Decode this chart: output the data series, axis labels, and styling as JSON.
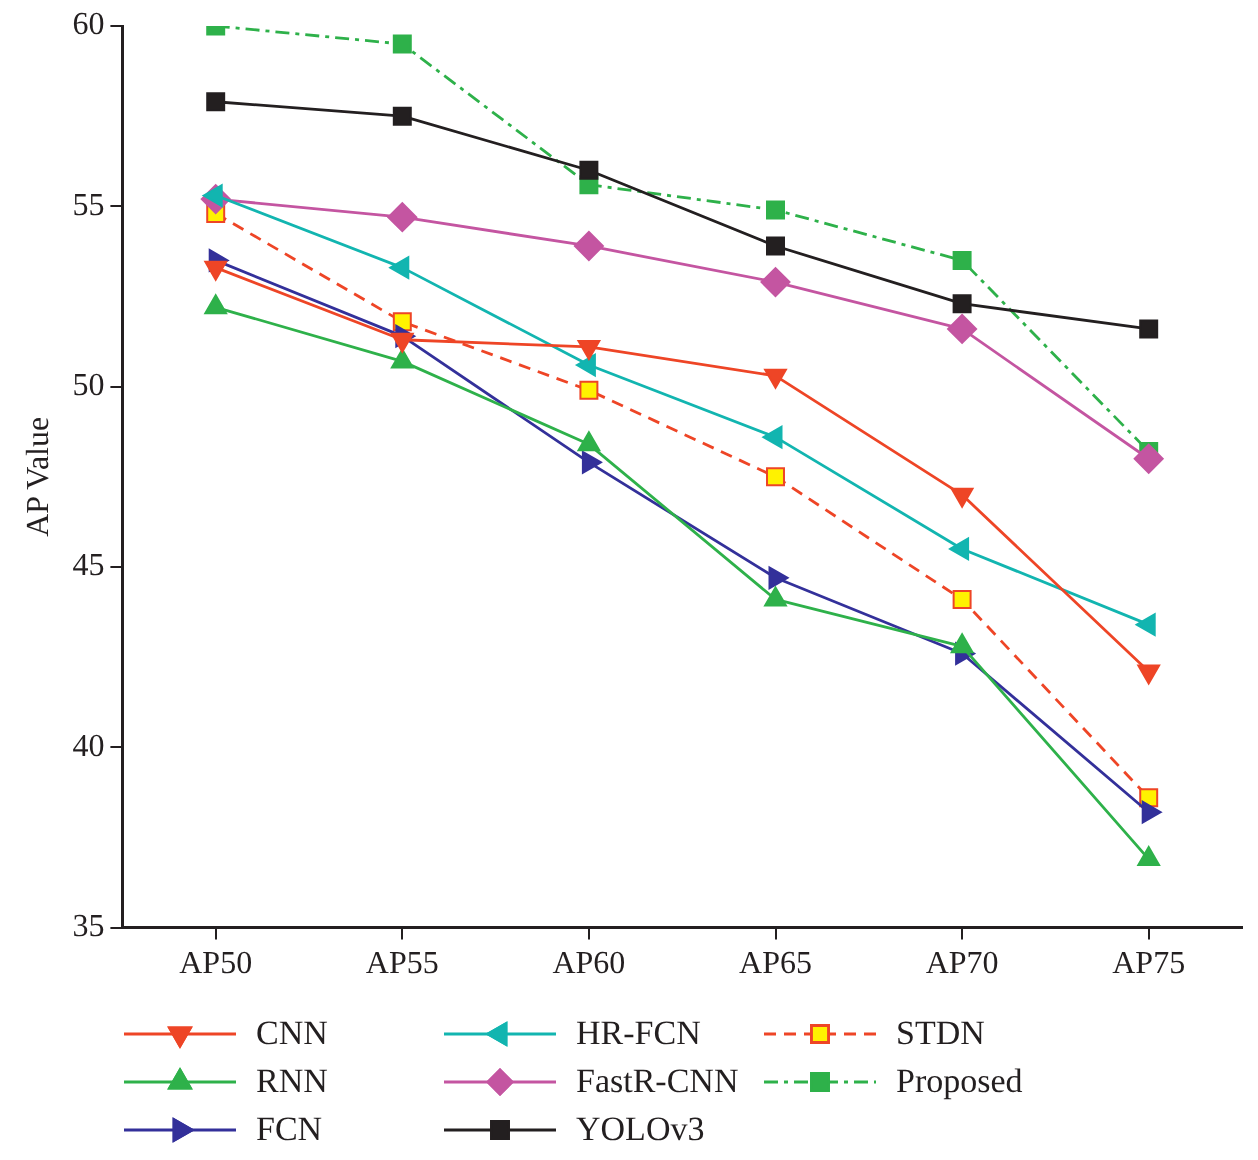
{
  "chart_data": {
    "type": "line",
    "ylabel": "AP Value",
    "categories": [
      "AP50",
      "AP55",
      "AP60",
      "AP65",
      "AP70",
      "AP75"
    ],
    "ylim": [
      35,
      60
    ],
    "yticks": [
      35,
      40,
      45,
      50,
      55,
      60
    ],
    "grid": false,
    "legend": "bottom",
    "series": [
      {
        "name": "CNN",
        "color": "#ee4526",
        "marker": "triangle",
        "line_style": "solid",
        "values": [
          53.3,
          51.3,
          51.1,
          50.3,
          47.0,
          42.1
        ]
      },
      {
        "name": "RNN",
        "color": "#2eb14a",
        "marker": "triangle",
        "line_style": "solid",
        "values": [
          52.2,
          50.7,
          48.4,
          44.1,
          42.8,
          36.9
        ]
      },
      {
        "name": "FCN",
        "color": "#33309a",
        "marker": "triangle",
        "line_style": "solid",
        "values": [
          53.5,
          51.4,
          47.9,
          44.7,
          42.6,
          38.2
        ]
      },
      {
        "name": "HR-FCN",
        "color": "#12b5b0",
        "marker": "triangle",
        "line_style": "solid",
        "values": [
          55.3,
          53.3,
          50.6,
          48.6,
          45.5,
          43.4
        ]
      },
      {
        "name": "FastR-CNN",
        "color": "#c455a1",
        "marker": "diamond",
        "line_style": "solid",
        "values": [
          55.2,
          54.7,
          53.9,
          52.9,
          51.6,
          48.0
        ]
      },
      {
        "name": "YOLOv3",
        "color": "#231f20",
        "marker": "square",
        "line_style": "solid",
        "values": [
          57.9,
          57.5,
          56.0,
          53.9,
          52.3,
          51.6
        ]
      },
      {
        "name": "STDN",
        "color": "#ee4526",
        "marker": "square",
        "line_style": "dashed",
        "values": [
          54.8,
          51.8,
          49.9,
          47.5,
          44.1,
          38.6
        ]
      },
      {
        "name": "Proposed",
        "color": "#2eb14a",
        "marker": "square",
        "line_style": "dashdot",
        "values": [
          60.0,
          59.5,
          55.6,
          54.9,
          53.5,
          48.2
        ]
      }
    ]
  }
}
